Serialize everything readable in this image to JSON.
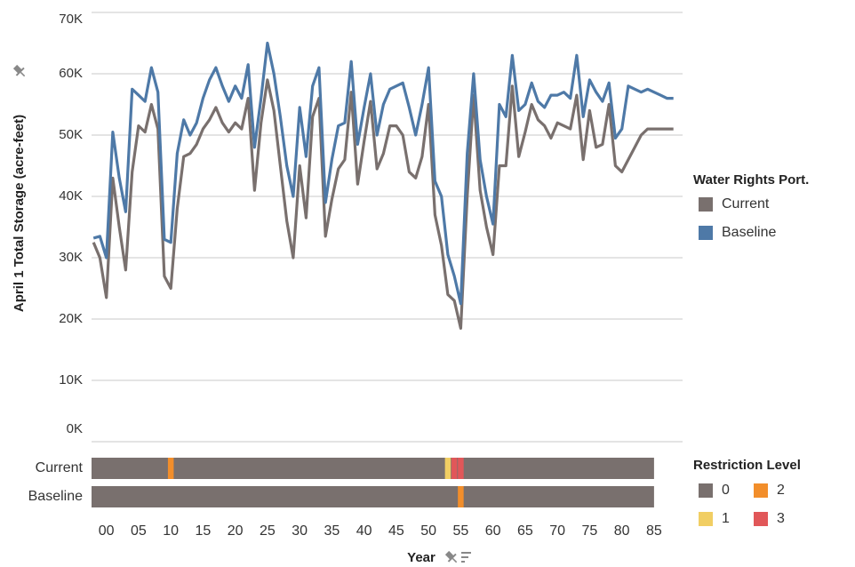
{
  "chart_data": {
    "type": "line",
    "y_axis_label": "April 1 Total Storage (acre-feet)",
    "x_axis_label": "Year",
    "legend_title": "Water Rights Port.",
    "x": [
      -2,
      -1,
      0,
      1,
      2,
      3,
      4,
      5,
      6,
      7,
      8,
      9,
      10,
      11,
      12,
      13,
      14,
      15,
      16,
      17,
      18,
      19,
      20,
      21,
      22,
      23,
      24,
      25,
      26,
      27,
      28,
      29,
      30,
      31,
      32,
      33,
      34,
      35,
      36,
      37,
      38,
      39,
      40,
      41,
      42,
      43,
      44,
      45,
      46,
      47,
      48,
      49,
      50,
      51,
      52,
      53,
      54,
      55,
      56,
      57,
      58,
      59,
      60,
      61,
      62,
      63,
      64,
      65,
      66,
      67,
      68,
      69,
      70,
      71,
      72,
      73,
      74,
      75,
      76,
      77,
      78,
      79,
      80,
      81,
      82,
      83,
      84,
      85,
      86,
      87,
      88
    ],
    "series": [
      {
        "name": "Current",
        "color": "#79706e",
        "values": [
          32500,
          30000,
          23500,
          43000,
          35000,
          28000,
          44000,
          51500,
          50500,
          55000,
          51000,
          27000,
          25000,
          38000,
          46500,
          47000,
          48500,
          51000,
          52500,
          54500,
          52000,
          50500,
          52000,
          51000,
          56000,
          41000,
          52000,
          59000,
          54000,
          45000,
          36000,
          30000,
          45000,
          36500,
          53000,
          56000,
          33500,
          39500,
          44500,
          46000,
          57000,
          42000,
          49000,
          55500,
          44500,
          47000,
          51500,
          51500,
          50000,
          44000,
          43000,
          46500,
          55000,
          37000,
          32000,
          24000,
          23000,
          18500,
          40000,
          56500,
          41000,
          35000,
          30500,
          45000,
          45000,
          58000,
          46500,
          50500,
          55000,
          52500,
          51500,
          49500,
          52000,
          51500,
          51000,
          56500,
          46000,
          54000,
          48000,
          48500,
          55000,
          45000,
          44000,
          46000,
          48000,
          50000,
          51000,
          51000,
          51000,
          51000,
          51000
        ]
      },
      {
        "name": "Baseline",
        "color": "#4e79a7",
        "values": [
          33200,
          33500,
          30000,
          50500,
          43000,
          37500,
          57500,
          56500,
          55500,
          61000,
          57000,
          33000,
          32500,
          47000,
          52500,
          50000,
          52000,
          56000,
          59000,
          61000,
          58000,
          55500,
          58000,
          56000,
          61500,
          48000,
          56000,
          65000,
          60000,
          53000,
          45000,
          40000,
          54500,
          46500,
          58000,
          61000,
          39000,
          46000,
          51500,
          52000,
          62000,
          48500,
          54500,
          60000,
          50000,
          55000,
          57500,
          58000,
          58500,
          54500,
          50000,
          55000,
          61000,
          42500,
          40000,
          30500,
          27000,
          22500,
          47000,
          60000,
          46000,
          40000,
          35500,
          55000,
          53000,
          63000,
          54000,
          55000,
          58500,
          55500,
          54500,
          56500,
          56500,
          57000,
          56000,
          63000,
          53000,
          59000,
          57000,
          55500,
          58500,
          49500,
          51000,
          58000,
          57500,
          57000,
          57500,
          57000,
          56500,
          56000,
          56000
        ]
      }
    ],
    "xlim": [
      -2.3,
      88.6
    ],
    "xticks": [
      {
        "value": 0,
        "label": "00"
      },
      {
        "value": 5,
        "label": "05"
      },
      10,
      15,
      20,
      25,
      30,
      35,
      40,
      45,
      50,
      55,
      60,
      65,
      70,
      75,
      80,
      85
    ],
    "ylim": [
      0,
      70000
    ],
    "yticks": [
      {
        "value": 0,
        "label": "0K"
      },
      {
        "value": 10000,
        "label": "10K"
      },
      {
        "value": 20000,
        "label": "20K"
      },
      {
        "value": 30000,
        "label": "30K"
      },
      {
        "value": 40000,
        "label": "40K"
      },
      {
        "value": 50000,
        "label": "50K"
      },
      {
        "value": 60000,
        "label": "60K"
      },
      {
        "value": 70000,
        "label": "70K"
      }
    ],
    "grid": true,
    "restriction": {
      "legend_title": "Restriction Level",
      "rows": [
        "Current",
        "Baseline"
      ],
      "levels": [
        0,
        1,
        2,
        3
      ],
      "level_colors": [
        "#79706e",
        "#f1ce63",
        "#f28e2b",
        "#e15759"
      ],
      "events": [
        {
          "row": 0,
          "year": 10,
          "level": 2
        },
        {
          "row": 0,
          "year": 53,
          "level": 1
        },
        {
          "row": 0,
          "year": 54,
          "level": 3
        },
        {
          "row": 0,
          "year": 55,
          "level": 3
        },
        {
          "row": 1,
          "year": 55,
          "level": 2
        }
      ]
    }
  }
}
